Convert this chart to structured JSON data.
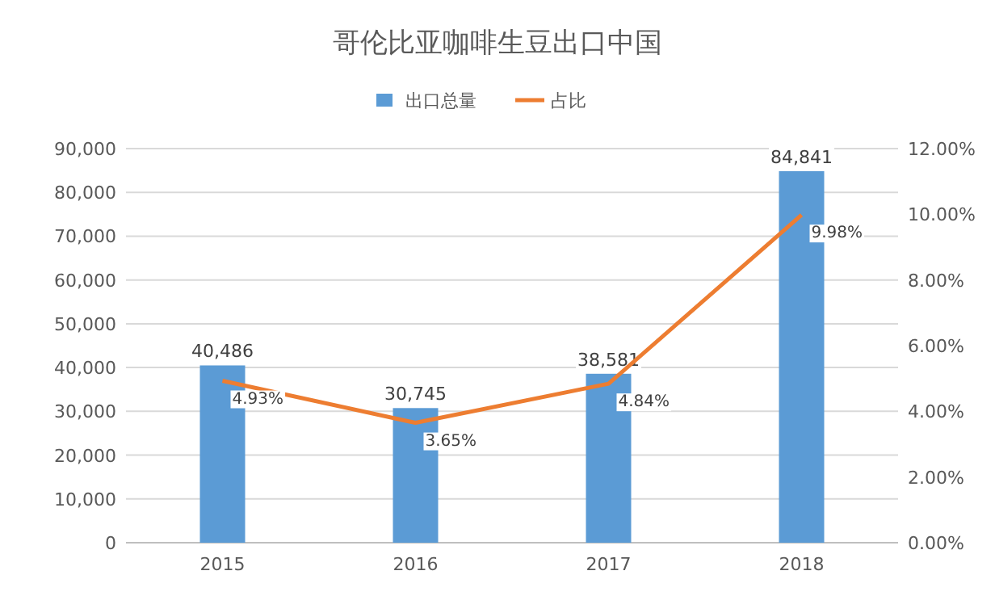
{
  "chart_data": {
    "type": "bar",
    "title": "哥伦比亚咖啡生豆出口中国",
    "categories": [
      "2015",
      "2016",
      "2017",
      "2018"
    ],
    "series": [
      {
        "name": "出口总量",
        "color": "#5b9bd5",
        "values": [
          40486,
          30745,
          38581,
          84841
        ],
        "value_labels": [
          "40,486",
          "30,745",
          "38,581",
          "84,841"
        ]
      },
      {
        "name": "占比",
        "type": "line",
        "axis": "y2",
        "color": "#ed7d31",
        "values": [
          4.93,
          3.65,
          4.84,
          9.98
        ],
        "value_labels": [
          "4.93%",
          "3.65%",
          "4.84%",
          "9.98%"
        ]
      }
    ],
    "ylim": [
      0,
      90000
    ],
    "yticks": [
      {
        "value": 0,
        "label": "0"
      },
      {
        "value": 10000,
        "label": "10,000"
      },
      {
        "value": 20000,
        "label": "20,000"
      },
      {
        "value": 30000,
        "label": "30,000"
      },
      {
        "value": 40000,
        "label": "40,000"
      },
      {
        "value": 50000,
        "label": "50,000"
      },
      {
        "value": 60000,
        "label": "60,000"
      },
      {
        "value": 70000,
        "label": "70,000"
      },
      {
        "value": 80000,
        "label": "80,000"
      },
      {
        "value": 90000,
        "label": "90,000"
      }
    ],
    "y2lim": [
      0,
      12
    ],
    "y2ticks": [
      {
        "value": 0,
        "label": "0.00%"
      },
      {
        "value": 2,
        "label": "2.00%"
      },
      {
        "value": 4,
        "label": "4.00%"
      },
      {
        "value": 6,
        "label": "6.00%"
      },
      {
        "value": 8,
        "label": "8.00%"
      },
      {
        "value": 10,
        "label": "10.00%"
      },
      {
        "value": 12,
        "label": "12.00%"
      }
    ],
    "grid": "y",
    "legend": "top"
  }
}
